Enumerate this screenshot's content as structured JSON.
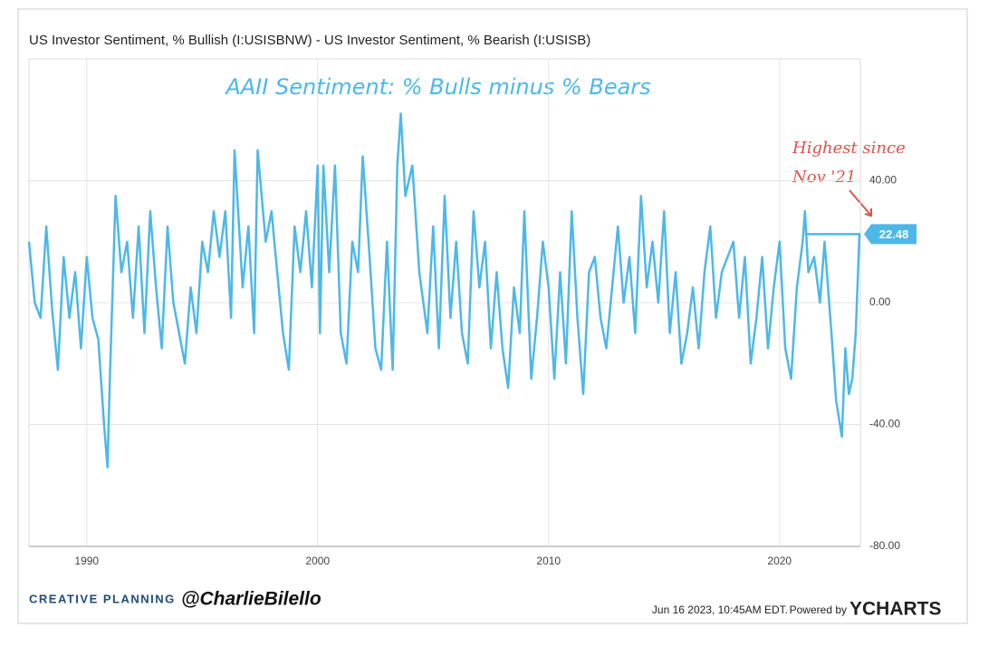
{
  "chart_data": {
    "type": "line",
    "title": "US Investor Sentiment, % Bullish (I:USISBNW) - US Investor Sentiment, % Bearish (I:USISB)",
    "annotation": "AAII Sentiment: % Bulls minus % Bears",
    "callout": [
      "Highest since",
      "Nov '21"
    ],
    "footer_brand": "CREATIVE PLANNING",
    "footer_handle": "@CharlieBilello",
    "timestamp": "Jun 16 2023, 10:45AM EDT.",
    "powered_by": "Powered by",
    "provider": "YCHARTS",
    "color": "#4db8e8",
    "xlim": [
      1987.5,
      2023.5
    ],
    "xticks": [
      1990,
      2000,
      2010,
      2020
    ],
    "ylim": [
      -80,
      80
    ],
    "yticks": [
      {
        "value": 40,
        "label": "40.00"
      },
      {
        "value": 0,
        "label": "0.00"
      },
      {
        "value": -40,
        "label": "-40.00"
      },
      {
        "value": -80,
        "label": "-80.00"
      }
    ],
    "grid": true,
    "x": [
      1987.5,
      1987.75,
      1988,
      1988.25,
      1988.5,
      1988.75,
      1989,
      1989.25,
      1989.5,
      1989.75,
      1990,
      1990.25,
      1990.5,
      1990.75,
      1990.9,
      1991,
      1991.25,
      1991.5,
      1991.75,
      1992,
      1992.25,
      1992.5,
      1992.75,
      1993,
      1993.25,
      1993.5,
      1993.75,
      1994,
      1994.25,
      1994.5,
      1994.75,
      1995,
      1995.25,
      1995.5,
      1995.75,
      1996,
      1996.25,
      1996.4,
      1996.75,
      1997,
      1997.25,
      1997.4,
      1997.75,
      1998,
      1998.25,
      1998.5,
      1998.75,
      1999,
      1999.25,
      1999.5,
      1999.75,
      2000,
      2000.1,
      2000.25,
      2000.5,
      2000.75,
      2001,
      2001.25,
      2001.5,
      2001.75,
      2001.95,
      2002.25,
      2002.5,
      2002.75,
      2003,
      2003.25,
      2003.45,
      2003.6,
      2003.8,
      2004.1,
      2004.4,
      2004.75,
      2005,
      2005.25,
      2005.5,
      2005.75,
      2006,
      2006.25,
      2006.5,
      2006.75,
      2007,
      2007.25,
      2007.5,
      2007.75,
      2008,
      2008.25,
      2008.5,
      2008.75,
      2008.95,
      2009.25,
      2009.5,
      2009.75,
      2010,
      2010.25,
      2010.5,
      2010.75,
      2011,
      2011.25,
      2011.5,
      2011.75,
      2012,
      2012.25,
      2012.5,
      2012.75,
      2013,
      2013.25,
      2013.5,
      2013.75,
      2014,
      2014.25,
      2014.5,
      2014.75,
      2015,
      2015.25,
      2015.5,
      2015.75,
      2016,
      2016.25,
      2016.5,
      2016.75,
      2017,
      2017.25,
      2017.5,
      2017.75,
      2018,
      2018.25,
      2018.5,
      2018.75,
      2019,
      2019.25,
      2019.5,
      2019.75,
      2020,
      2020.25,
      2020.5,
      2020.75,
      2021,
      2021.1,
      2021.25,
      2021.5,
      2021.75,
      2021.95,
      2022.25,
      2022.45,
      2022.7,
      2022.85,
      2023,
      2023.15,
      2023.3,
      2023.46
    ],
    "values": [
      20,
      0,
      -5,
      25,
      -2,
      -22,
      15,
      -5,
      10,
      -15,
      15,
      -5,
      -12,
      -40,
      -54,
      -25,
      35,
      10,
      20,
      -5,
      25,
      -10,
      30,
      5,
      -15,
      25,
      0,
      -10,
      -20,
      5,
      -10,
      20,
      10,
      30,
      15,
      30,
      -5,
      50,
      5,
      25,
      -10,
      50,
      20,
      30,
      10,
      -10,
      -22,
      25,
      10,
      30,
      5,
      45,
      -10,
      45,
      10,
      45,
      -10,
      -20,
      20,
      10,
      48,
      15,
      -15,
      -22,
      20,
      -22,
      45,
      62,
      35,
      45,
      10,
      -10,
      25,
      -15,
      35,
      -5,
      20,
      -10,
      -20,
      30,
      5,
      20,
      -15,
      10,
      -15,
      -28,
      5,
      -10,
      30,
      -25,
      -5,
      20,
      5,
      -25,
      10,
      -20,
      30,
      -5,
      -30,
      10,
      15,
      -5,
      -15,
      5,
      25,
      0,
      15,
      -10,
      35,
      5,
      20,
      0,
      30,
      -10,
      10,
      -20,
      -10,
      5,
      -15,
      10,
      25,
      -5,
      10,
      15,
      20,
      -5,
      15,
      -20,
      -5,
      15,
      -15,
      5,
      20,
      -15,
      -25,
      5,
      20,
      30,
      10,
      15,
      0,
      20,
      -10,
      -32,
      -44,
      -15,
      -30,
      -25,
      -10,
      22.48
    ]
  }
}
